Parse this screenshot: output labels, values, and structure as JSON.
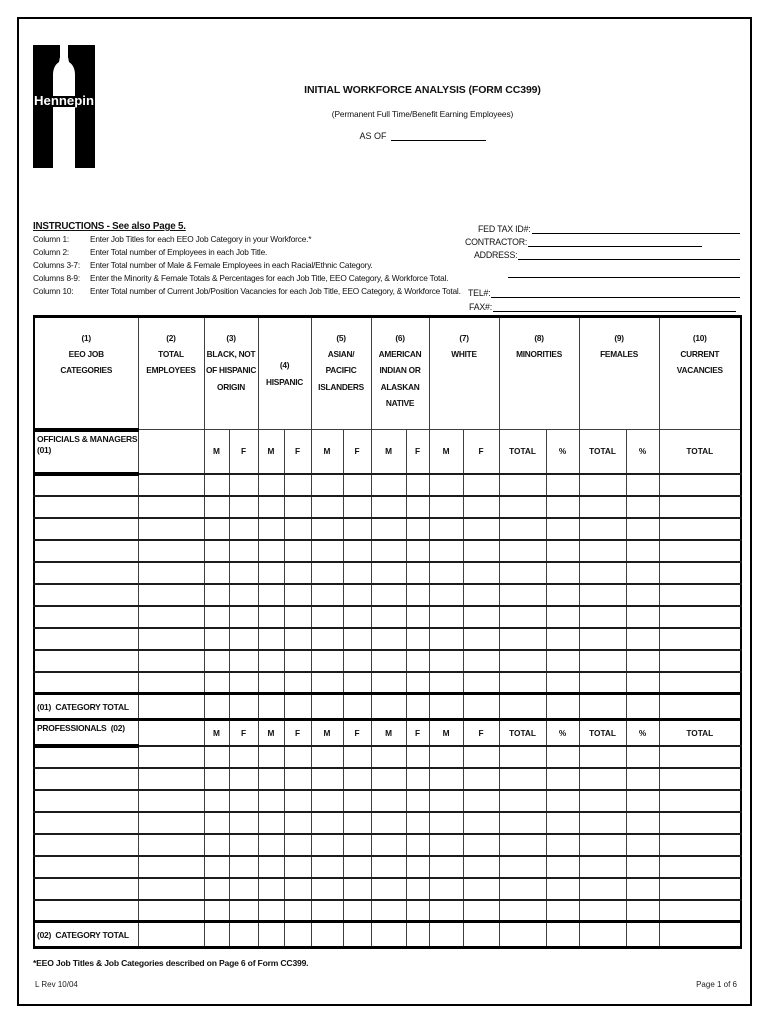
{
  "header": {
    "logo_text": "Hennepin",
    "title": "INITIAL WORKFORCE ANALYSIS (FORM CC399)",
    "subtitle": "(Permanent Full Time/Benefit Earning Employees)",
    "as_of_label": "AS OF"
  },
  "instructions": {
    "heading": "INSTRUCTIONS - See also Page 5.",
    "items": [
      {
        "label": "Column 1:",
        "text": "Enter Job Titles for each EEO Job Category in your Workforce.*"
      },
      {
        "label": "Column 2:",
        "text": "Enter Total number of Employees in each Job Title."
      },
      {
        "label": "Columns 3-7:",
        "text": "Enter Total number of Male & Female Employees in each Racial/Ethnic Category."
      },
      {
        "label": "Columns 8-9:",
        "text": "Enter the Minority & Female Totals & Percentages for each Job Title, EEO Category, & Workforce Total."
      },
      {
        "label": "Column 10:",
        "text": "Enter Total number of Current Job/Position Vacancies for each Job Title, EEO Category, & Workforce Total."
      }
    ]
  },
  "contact": {
    "fed_tax_id_label": "FED TAX ID#:",
    "contractor_label": "CONTRACTOR:",
    "address_label": "ADDRESS:",
    "tel_label": "TEL#:",
    "fax_label": "FAX#:"
  },
  "table": {
    "column_headers": [
      "(1)\nEEO JOB\nCATEGORIES",
      "(2)\nTOTAL\nEMPLOYEES",
      "(3)\nBLACK, NOT\nOF HISPANIC\nORIGIN",
      "(4)\nHISPANIC",
      "(5)\nASIAN/\nPACIFIC\nISLANDERS",
      "(6)\nAMERICAN\nINDIAN OR\nALASKAN\nNATIVE",
      "(7)\nWHITE",
      "(8)\nMINORITIES",
      "(9)\nFEMALES",
      "(10)\nCURRENT\nVACANCIES"
    ],
    "sub_headers": {
      "male": "M",
      "female": "F",
      "total": "TOTAL",
      "percent": "%"
    },
    "sections": [
      {
        "label": "OFFICIALS & MANAGERS\n(01)",
        "empty_rows": 10,
        "total_label": "(01)  CATEGORY TOTAL"
      },
      {
        "label": "PROFESSIONALS  (02)",
        "empty_rows": 8,
        "total_label": "(02)  CATEGORY TOTAL"
      }
    ]
  },
  "footer": {
    "footnote": "*EEO Job Titles & Job Categories described on Page 6 of Form CC399.",
    "revision": "L Rev 10/04",
    "page_number": "Page 1 of 6"
  }
}
